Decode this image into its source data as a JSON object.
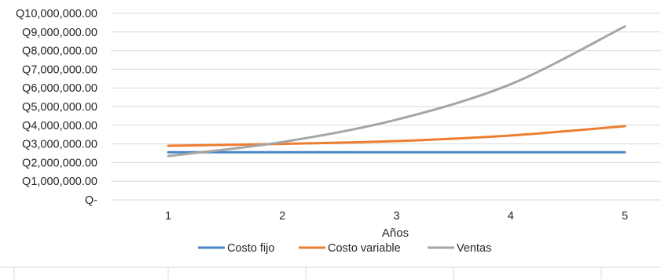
{
  "chart_data": {
    "type": "line",
    "x": [
      1,
      2,
      3,
      4,
      5
    ],
    "xlabel": "Años",
    "ylabel": "",
    "ylim": [
      0,
      10000000
    ],
    "ytick_step": 1000000,
    "yticks_labels": [
      "Q-",
      "Q1,000,000.00",
      "Q2,000,000.00",
      "Q3,000,000.00",
      "Q4,000,000.00",
      "Q5,000,000.00",
      "Q6,000,000.00",
      "Q7,000,000.00",
      "Q8,000,000.00",
      "Q9,000,000.00",
      "Q10,000,000.00"
    ],
    "xticks_labels": [
      "1",
      "2",
      "3",
      "4",
      "5"
    ],
    "grid": true,
    "legend_position": "bottom",
    "series": [
      {
        "name": "Costo fijo",
        "color": "#4a86c5",
        "values": [
          2550000,
          2550000,
          2550000,
          2550000,
          2550000
        ]
      },
      {
        "name": "Costo variable",
        "color": "#ed7d31",
        "values": [
          2900000,
          3000000,
          3150000,
          3450000,
          3950000
        ]
      },
      {
        "name": "Ventas",
        "color": "#a5a5a5",
        "values": [
          2350000,
          3100000,
          4300000,
          6200000,
          9300000
        ]
      }
    ]
  }
}
